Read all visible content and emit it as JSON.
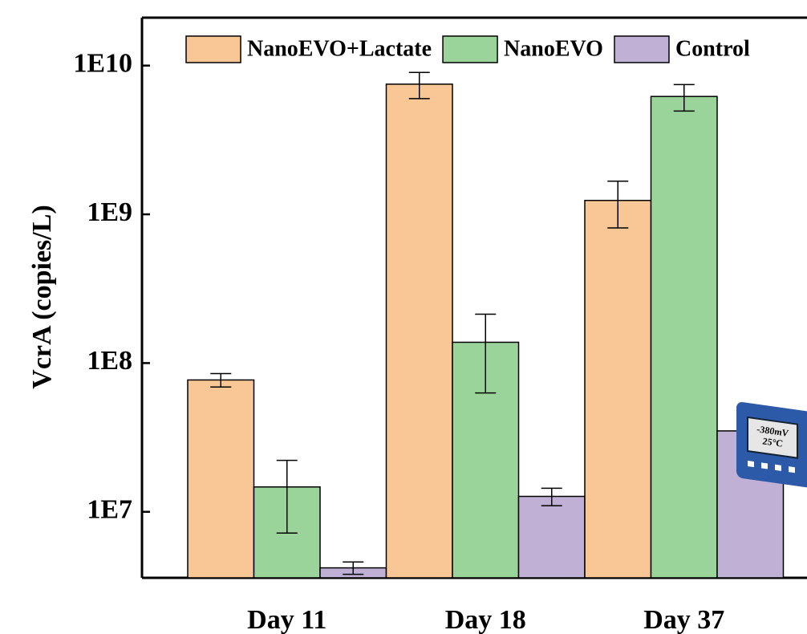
{
  "chart_data": {
    "type": "bar",
    "log_scale": true,
    "y_label": "VcrA (copies/L)",
    "categories": [
      "Day 11",
      "Day 18",
      "Day 37"
    ],
    "series": [
      {
        "name": "NanoEVO+Lactate",
        "color": "#f9c795",
        "values": [
          77000000,
          7500000000,
          1240000000
        ],
        "errors": [
          8000000,
          1500000000,
          430000000
        ]
      },
      {
        "name": "NanoEVO",
        "color": "#9ad49a",
        "values": [
          14700000,
          138000000,
          6200000000
        ],
        "errors": [
          7500000,
          75000000,
          1250000000
        ]
      },
      {
        "name": "Control",
        "color": "#c0b0d6",
        "values": [
          4200000,
          12700000,
          35000000
        ],
        "errors": [
          400000,
          1700000,
          null
        ]
      }
    ],
    "ylim": [
      3600000,
      21000000000
    ],
    "yticks": [
      {
        "value": 10000000,
        "label": "1E7"
      },
      {
        "value": 100000000,
        "label": "1E8"
      },
      {
        "value": 1000000000,
        "label": "1E9"
      },
      {
        "value": 10000000000,
        "label": "1E10"
      }
    ],
    "legend": "top",
    "icon_text": [
      "-380mV",
      "25°C"
    ]
  }
}
